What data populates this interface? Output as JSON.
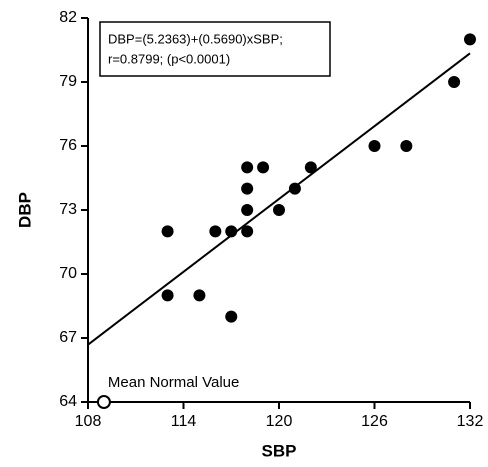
{
  "chart_data": {
    "type": "scatter",
    "xlabel": "SBP",
    "ylabel": "DBP",
    "x": [
      113,
      113,
      115,
      116,
      117,
      117,
      118,
      118,
      118,
      118,
      119,
      120,
      121,
      122,
      126,
      128,
      131,
      132
    ],
    "values": [
      72,
      69,
      69,
      72,
      72,
      68,
      75,
      74,
      73,
      72,
      75,
      73,
      74,
      75,
      76,
      76,
      79,
      81
    ],
    "color": "#000000",
    "xlim": [
      108,
      132
    ],
    "xticks": [
      108,
      114,
      120,
      126,
      132
    ],
    "ylim": [
      64,
      82
    ],
    "yticks": [
      64,
      67,
      70,
      73,
      76,
      79,
      82
    ],
    "regression": {
      "intercept": 5.2363,
      "slope": 0.569
    },
    "annotation": [
      "DBP=(5.2363)+(0.5690)xSBP;",
      "r=0.8799; (p<0.0001)"
    ],
    "reference": {
      "label": "Mean Normal Value",
      "x": 109,
      "y": 64
    }
  }
}
